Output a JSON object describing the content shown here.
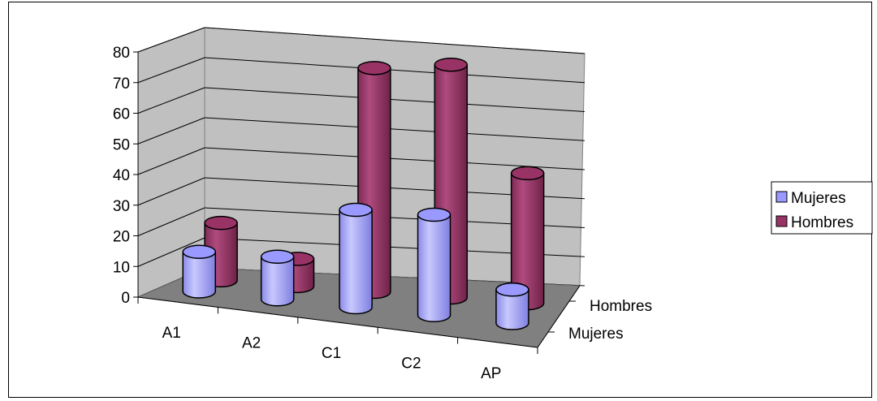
{
  "chart_data": {
    "type": "bar",
    "categories": [
      "A1",
      "A2",
      "C1",
      "C2",
      "AP"
    ],
    "series": [
      {
        "name": "Mujeres",
        "values": [
          13,
          14,
          32,
          33,
          11
        ]
      },
      {
        "name": "Hombres",
        "values": [
          19,
          9,
          74,
          77,
          43
        ]
      }
    ],
    "depth_labels": [
      "Hombres",
      "Mujeres"
    ],
    "y_ticks": [
      "0",
      "10",
      "20",
      "30",
      "40",
      "50",
      "60",
      "70",
      "80"
    ],
    "ylim": [
      0,
      80
    ],
    "legend": {
      "position": "right"
    },
    "grid": true,
    "colors": {
      "Mujeres": "#9999ff",
      "Hombres": "#993366",
      "floor": "#808080",
      "walls": "#c0c0c0"
    }
  }
}
